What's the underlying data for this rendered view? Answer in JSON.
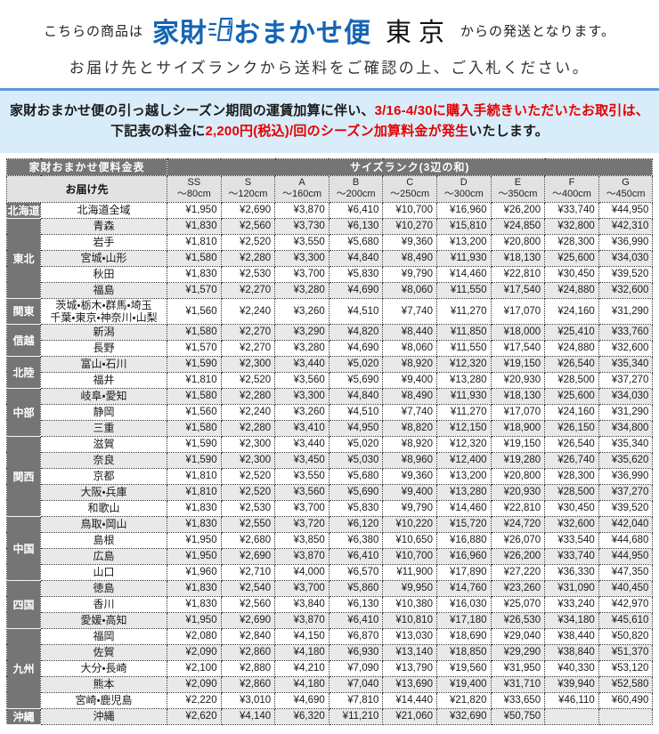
{
  "header": {
    "prefix": "こちらの商品は",
    "logo_part1": "家財",
    "logo_part2": "おまかせ便",
    "origin": "東京",
    "suffix": "からの発送となります。",
    "subtitle": "お届け先とサイズランクから送料をご確認の上、ご入札ください。"
  },
  "notice": {
    "line1_black": "家財おまかせ便の引っ越しシーズン期間の運賃加算に伴い、",
    "line1_red": "3/16-4/30に購入手続きいただいたお取引は、",
    "line2_black_start": "下記表の料金に",
    "line2_red": "2,200円(税込)/回のシーズン加算料金が発生",
    "line2_black_end": "いたします。"
  },
  "colors": {
    "logo_blue": "#1565b4",
    "notice_background": "#d9ecf9",
    "notice_border": "#5b9bd5",
    "alert_red": "#e60000",
    "table_dark_gray": "#757575",
    "row_alt_gray": "#e9e9e9"
  },
  "table": {
    "title": "家財おまかせ便料金表",
    "size_rank_header": "サイズランク(3辺の和)",
    "destination_header": "お届け先",
    "size_columns": [
      {
        "rank": "SS",
        "range": "～80cm"
      },
      {
        "rank": "S",
        "range": "～120cm"
      },
      {
        "rank": "A",
        "range": "～160cm"
      },
      {
        "rank": "B",
        "range": "～200cm"
      },
      {
        "rank": "C",
        "range": "～250cm"
      },
      {
        "rank": "D",
        "range": "～300cm"
      },
      {
        "rank": "E",
        "range": "～350cm"
      },
      {
        "rank": "F",
        "range": "～400cm"
      },
      {
        "rank": "G",
        "range": "～450cm"
      }
    ],
    "regions": [
      {
        "name": "北海道",
        "rows": [
          {
            "dest": "北海道全域",
            "prices": [
              "¥1,950",
              "¥2,690",
              "¥3,870",
              "¥6,410",
              "¥10,700",
              "¥16,960",
              "¥26,200",
              "¥33,740",
              "¥44,950"
            ]
          }
        ]
      },
      {
        "name": "東北",
        "rows": [
          {
            "dest": "青森",
            "prices": [
              "¥1,830",
              "¥2,560",
              "¥3,730",
              "¥6,130",
              "¥10,270",
              "¥15,810",
              "¥24,850",
              "¥32,800",
              "¥42,310"
            ]
          },
          {
            "dest": "岩手",
            "prices": [
              "¥1,810",
              "¥2,520",
              "¥3,550",
              "¥5,680",
              "¥9,360",
              "¥13,200",
              "¥20,800",
              "¥28,300",
              "¥36,990"
            ]
          },
          {
            "dest": "宮城・山形",
            "prices": [
              "¥1,580",
              "¥2,280",
              "¥3,300",
              "¥4,840",
              "¥8,490",
              "¥11,930",
              "¥18,130",
              "¥25,600",
              "¥34,030"
            ]
          },
          {
            "dest": "秋田",
            "prices": [
              "¥1,830",
              "¥2,530",
              "¥3,700",
              "¥5,830",
              "¥9,790",
              "¥14,460",
              "¥22,810",
              "¥30,450",
              "¥39,520"
            ]
          },
          {
            "dest": "福島",
            "prices": [
              "¥1,570",
              "¥2,270",
              "¥3,280",
              "¥4,690",
              "¥8,060",
              "¥11,550",
              "¥17,540",
              "¥24,880",
              "¥32,600"
            ]
          }
        ]
      },
      {
        "name": "関東",
        "rows": [
          {
            "dest": "茨城・栃木・群馬・埼玉\n千葉・東京・神奈川・山梨",
            "prices": [
              "¥1,560",
              "¥2,240",
              "¥3,260",
              "¥4,510",
              "¥7,740",
              "¥11,270",
              "¥17,070",
              "¥24,160",
              "¥31,290"
            ]
          }
        ]
      },
      {
        "name": "信越",
        "rows": [
          {
            "dest": "新潟",
            "prices": [
              "¥1,580",
              "¥2,270",
              "¥3,290",
              "¥4,820",
              "¥8,440",
              "¥11,850",
              "¥18,000",
              "¥25,410",
              "¥33,760"
            ]
          },
          {
            "dest": "長野",
            "prices": [
              "¥1,570",
              "¥2,270",
              "¥3,280",
              "¥4,690",
              "¥8,060",
              "¥11,550",
              "¥17,540",
              "¥24,880",
              "¥32,600"
            ]
          }
        ]
      },
      {
        "name": "北陸",
        "rows": [
          {
            "dest": "富山・石川",
            "prices": [
              "¥1,590",
              "¥2,300",
              "¥3,440",
              "¥5,020",
              "¥8,920",
              "¥12,320",
              "¥19,150",
              "¥26,540",
              "¥35,340"
            ]
          },
          {
            "dest": "福井",
            "prices": [
              "¥1,810",
              "¥2,520",
              "¥3,560",
              "¥5,690",
              "¥9,400",
              "¥13,280",
              "¥20,930",
              "¥28,500",
              "¥37,270"
            ]
          }
        ]
      },
      {
        "name": "中部",
        "rows": [
          {
            "dest": "岐阜・愛知",
            "prices": [
              "¥1,580",
              "¥2,280",
              "¥3,300",
              "¥4,840",
              "¥8,490",
              "¥11,930",
              "¥18,130",
              "¥25,600",
              "¥34,030"
            ]
          },
          {
            "dest": "静岡",
            "prices": [
              "¥1,560",
              "¥2,240",
              "¥3,260",
              "¥4,510",
              "¥7,740",
              "¥11,270",
              "¥17,070",
              "¥24,160",
              "¥31,290"
            ]
          },
          {
            "dest": "三重",
            "prices": [
              "¥1,580",
              "¥2,280",
              "¥3,410",
              "¥4,950",
              "¥8,820",
              "¥12,150",
              "¥18,900",
              "¥26,150",
              "¥34,800"
            ]
          }
        ]
      },
      {
        "name": "関西",
        "rows": [
          {
            "dest": "滋賀",
            "prices": [
              "¥1,590",
              "¥2,300",
              "¥3,440",
              "¥5,020",
              "¥8,920",
              "¥12,320",
              "¥19,150",
              "¥26,540",
              "¥35,340"
            ]
          },
          {
            "dest": "奈良",
            "prices": [
              "¥1,590",
              "¥2,300",
              "¥3,450",
              "¥5,030",
              "¥8,960",
              "¥12,400",
              "¥19,280",
              "¥26,740",
              "¥35,620"
            ]
          },
          {
            "dest": "京都",
            "prices": [
              "¥1,810",
              "¥2,520",
              "¥3,550",
              "¥5,680",
              "¥9,360",
              "¥13,200",
              "¥20,800",
              "¥28,300",
              "¥36,990"
            ]
          },
          {
            "dest": "大阪・兵庫",
            "prices": [
              "¥1,810",
              "¥2,520",
              "¥3,560",
              "¥5,690",
              "¥9,400",
              "¥13,280",
              "¥20,930",
              "¥28,500",
              "¥37,270"
            ]
          },
          {
            "dest": "和歌山",
            "prices": [
              "¥1,830",
              "¥2,530",
              "¥3,700",
              "¥5,830",
              "¥9,790",
              "¥14,460",
              "¥22,810",
              "¥30,450",
              "¥39,520"
            ]
          }
        ]
      },
      {
        "name": "中国",
        "rows": [
          {
            "dest": "鳥取・岡山",
            "prices": [
              "¥1,830",
              "¥2,550",
              "¥3,720",
              "¥6,120",
              "¥10,220",
              "¥15,720",
              "¥24,720",
              "¥32,600",
              "¥42,040"
            ]
          },
          {
            "dest": "島根",
            "prices": [
              "¥1,950",
              "¥2,680",
              "¥3,850",
              "¥6,380",
              "¥10,650",
              "¥16,880",
              "¥26,070",
              "¥33,540",
              "¥44,680"
            ]
          },
          {
            "dest": "広島",
            "prices": [
              "¥1,950",
              "¥2,690",
              "¥3,870",
              "¥6,410",
              "¥10,700",
              "¥16,960",
              "¥26,200",
              "¥33,740",
              "¥44,950"
            ]
          },
          {
            "dest": "山口",
            "prices": [
              "¥1,960",
              "¥2,710",
              "¥4,000",
              "¥6,570",
              "¥11,900",
              "¥17,890",
              "¥27,220",
              "¥36,330",
              "¥47,350"
            ]
          }
        ]
      },
      {
        "name": "四国",
        "rows": [
          {
            "dest": "徳島",
            "prices": [
              "¥1,830",
              "¥2,540",
              "¥3,700",
              "¥5,860",
              "¥9,950",
              "¥14,760",
              "¥23,260",
              "¥31,090",
              "¥40,450"
            ]
          },
          {
            "dest": "香川",
            "prices": [
              "¥1,830",
              "¥2,560",
              "¥3,840",
              "¥6,130",
              "¥10,380",
              "¥16,030",
              "¥25,070",
              "¥33,240",
              "¥42,970"
            ]
          },
          {
            "dest": "愛媛・高知",
            "prices": [
              "¥1,950",
              "¥2,690",
              "¥3,870",
              "¥6,410",
              "¥10,810",
              "¥17,180",
              "¥26,530",
              "¥34,180",
              "¥45,610"
            ]
          }
        ]
      },
      {
        "name": "九州",
        "rows": [
          {
            "dest": "福岡",
            "prices": [
              "¥2,080",
              "¥2,840",
              "¥4,150",
              "¥6,870",
              "¥13,030",
              "¥18,690",
              "¥29,040",
              "¥38,440",
              "¥50,820"
            ]
          },
          {
            "dest": "佐賀",
            "prices": [
              "¥2,090",
              "¥2,860",
              "¥4,180",
              "¥6,930",
              "¥13,140",
              "¥18,850",
              "¥29,290",
              "¥38,840",
              "¥51,370"
            ]
          },
          {
            "dest": "大分・長崎",
            "prices": [
              "¥2,100",
              "¥2,880",
              "¥4,210",
              "¥7,090",
              "¥13,790",
              "¥19,560",
              "¥31,950",
              "¥40,330",
              "¥53,120"
            ]
          },
          {
            "dest": "熊本",
            "prices": [
              "¥2,090",
              "¥2,860",
              "¥4,180",
              "¥7,040",
              "¥13,690",
              "¥19,400",
              "¥31,710",
              "¥39,940",
              "¥52,580"
            ]
          },
          {
            "dest": "宮崎・鹿児島",
            "prices": [
              "¥2,220",
              "¥3,010",
              "¥4,690",
              "¥7,810",
              "¥14,440",
              "¥21,820",
              "¥33,650",
              "¥46,110",
              "¥60,490"
            ]
          }
        ]
      },
      {
        "name": "沖縄",
        "rows": [
          {
            "dest": "沖縄",
            "prices": [
              "¥2,620",
              "¥4,140",
              "¥6,320",
              "¥11,210",
              "¥21,060",
              "¥32,690",
              "¥50,750",
              null,
              null
            ]
          }
        ]
      }
    ]
  }
}
